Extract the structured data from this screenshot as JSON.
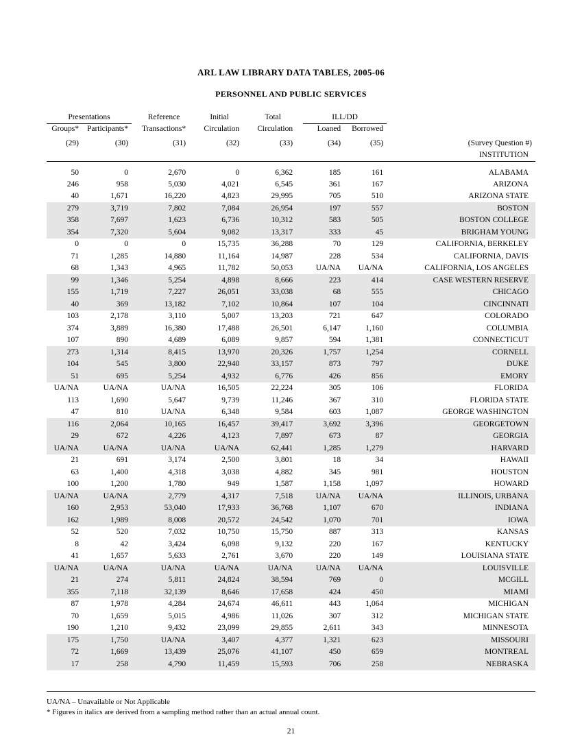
{
  "title": "ARL LAW LIBRARY DATA TABLES, 2005-06",
  "subtitle": "PERSONNEL AND PUBLIC SERVICES",
  "group_headers": {
    "presentations": "Presentations",
    "reference": "Reference",
    "initial": "Initial",
    "total": "Total",
    "illdd": "ILL/DD"
  },
  "col_labels": {
    "groups": "Groups*",
    "participants": "Participants*",
    "transactions": "Transactions*",
    "init_circ": "Circulation",
    "total_circ": "Circulation",
    "loaned": "Loaned",
    "borrowed": "Borrowed"
  },
  "qnums": {
    "c29": "(29)",
    "c30": "(30)",
    "c31": "(31)",
    "c32": "(32)",
    "c33": "(33)",
    "c34": "(34)",
    "c35": "(35)",
    "survey_label": "(Survey Question #)"
  },
  "institution_label": "INSTITUTION",
  "footnotes": {
    "uana": "UA/NA – Unavailable or Not Applicable",
    "italics": "* Figures in italics are derived from a sampling method rather than an actual annual count."
  },
  "page_number": "21",
  "rows": [
    {
      "shaded": false,
      "c29": "50",
      "c30": "0",
      "c31": "2,670",
      "c32": "0",
      "c33": "6,362",
      "c34": "185",
      "c35": "161",
      "inst": "ALABAMA"
    },
    {
      "shaded": false,
      "c29": "246",
      "c30": "958",
      "c31": "5,030",
      "c32": "4,021",
      "c33": "6,545",
      "c34": "361",
      "c35": "167",
      "inst": "ARIZONA"
    },
    {
      "shaded": false,
      "c29": "40",
      "c30": "1,671",
      "c31": "16,220",
      "c32": "4,823",
      "c33": "29,995",
      "c34": "705",
      "c35": "510",
      "inst": "ARIZONA STATE"
    },
    {
      "shaded": true,
      "c29": "279",
      "c30": "3,719",
      "c31": "7,802",
      "c32": "7,084",
      "c33": "26,954",
      "c34": "197",
      "c35": "557",
      "inst": "BOSTON"
    },
    {
      "shaded": true,
      "c29": "358",
      "c30": "7,697",
      "c31": "1,623",
      "c32": "6,736",
      "c33": "10,312",
      "c34": "583",
      "c35": "505",
      "inst": "BOSTON COLLEGE"
    },
    {
      "shaded": true,
      "c29": "354",
      "c30": "7,320",
      "c31": "5,604",
      "c32": "9,082",
      "c33": "13,317",
      "c34": "333",
      "c35": "45",
      "inst": "BRIGHAM YOUNG"
    },
    {
      "shaded": false,
      "c29": "0",
      "c30": "0",
      "c31": "0",
      "c32": "15,735",
      "c33": "36,288",
      "c34": "70",
      "c35": "129",
      "inst": "CALIFORNIA, BERKELEY"
    },
    {
      "shaded": false,
      "c29": "71",
      "c30": "1,285",
      "c31": "14,880",
      "c32": "11,164",
      "c33": "14,987",
      "c34": "228",
      "c35": "534",
      "inst": "CALIFORNIA, DAVIS"
    },
    {
      "shaded": false,
      "c29": "68",
      "c30": "1,343",
      "c31": "4,965",
      "c32": "11,782",
      "c33": "50,053",
      "c34": "UA/NA",
      "c35": "UA/NA",
      "inst": "CALIFORNIA, LOS ANGELES"
    },
    {
      "shaded": true,
      "c29": "99",
      "c30": "1,346",
      "c31": "5,254",
      "c32": "4,898",
      "c33": "8,666",
      "c34": "223",
      "c35": "414",
      "inst": "CASE WESTERN RESERVE"
    },
    {
      "shaded": true,
      "c29": "155",
      "c30": "1,719",
      "c31": "7,227",
      "c32": "26,051",
      "c33": "33,038",
      "c34": "68",
      "c35": "555",
      "inst": "CHICAGO"
    },
    {
      "shaded": true,
      "c29": "40",
      "c30": "369",
      "c31": "13,182",
      "c32": "7,102",
      "c33": "10,864",
      "c34": "107",
      "c35": "104",
      "inst": "CINCINNATI"
    },
    {
      "shaded": false,
      "c29": "103",
      "c30": "2,178",
      "c31": "3,110",
      "c32": "5,007",
      "c33": "13,203",
      "c34": "721",
      "c35": "647",
      "inst": "COLORADO"
    },
    {
      "shaded": false,
      "c29": "374",
      "c30": "3,889",
      "c31": "16,380",
      "c32": "17,488",
      "c33": "26,501",
      "c34": "6,147",
      "c35": "1,160",
      "inst": "COLUMBIA"
    },
    {
      "shaded": false,
      "c29": "107",
      "c30": "890",
      "c31": "4,689",
      "c32": "6,089",
      "c33": "9,857",
      "c34": "594",
      "c35": "1,381",
      "inst": "CONNECTICUT"
    },
    {
      "shaded": true,
      "c29": "273",
      "c30": "1,314",
      "c31": "8,415",
      "c32": "13,970",
      "c33": "20,326",
      "c34": "1,757",
      "c35": "1,254",
      "inst": "CORNELL"
    },
    {
      "shaded": true,
      "c29": "104",
      "c30": "545",
      "c31": "3,800",
      "c32": "22,940",
      "c33": "33,157",
      "c34": "873",
      "c35": "797",
      "inst": "DUKE"
    },
    {
      "shaded": true,
      "c29": "51",
      "c30": "695",
      "c31": "5,254",
      "c32": "4,932",
      "c33": "6,776",
      "c34": "426",
      "c35": "856",
      "inst": "EMORY"
    },
    {
      "shaded": false,
      "c29": "UA/NA",
      "c30": "UA/NA",
      "c31": "UA/NA",
      "c32": "16,505",
      "c33": "22,224",
      "c34": "305",
      "c35": "106",
      "inst": "FLORIDA"
    },
    {
      "shaded": false,
      "c29": "113",
      "c30": "1,690",
      "c31": "5,647",
      "c32": "9,739",
      "c33": "11,246",
      "c34": "367",
      "c35": "310",
      "inst": "FLORIDA STATE"
    },
    {
      "shaded": false,
      "c29": "47",
      "c30": "810",
      "c31": "UA/NA",
      "c32": "6,348",
      "c33": "9,584",
      "c34": "603",
      "c35": "1,087",
      "inst": "GEORGE WASHINGTON"
    },
    {
      "shaded": true,
      "c29": "116",
      "c30": "2,064",
      "c31": "10,165",
      "c32": "16,457",
      "c33": "39,417",
      "c34": "3,692",
      "c35": "3,396",
      "inst": "GEORGETOWN"
    },
    {
      "shaded": true,
      "c29": "29",
      "c30": "672",
      "c31": "4,226",
      "c32": "4,123",
      "c33": "7,897",
      "c34": "673",
      "c35": "87",
      "inst": "GEORGIA"
    },
    {
      "shaded": true,
      "c29": "UA/NA",
      "c30": "UA/NA",
      "c31": "UA/NA",
      "c32": "UA/NA",
      "c33": "62,441",
      "c34": "1,285",
      "c35": "1,279",
      "inst": "HARVARD"
    },
    {
      "shaded": false,
      "c29": "21",
      "c30": "691",
      "c31": "3,174",
      "c32": "2,500",
      "c33": "3,801",
      "c34": "18",
      "c35": "34",
      "inst": "HAWAII"
    },
    {
      "shaded": false,
      "c29": "63",
      "c30": "1,400",
      "c31": "4,318",
      "c32": "3,038",
      "c33": "4,882",
      "c34": "345",
      "c35": "981",
      "inst": "HOUSTON"
    },
    {
      "shaded": false,
      "c29": "100",
      "c30": "1,200",
      "c31": "1,780",
      "c32": "949",
      "c33": "1,587",
      "c34": "1,158",
      "c35": "1,097",
      "inst": "HOWARD"
    },
    {
      "shaded": true,
      "c29": "UA/NA",
      "c30": "UA/NA",
      "c31": "2,779",
      "c32": "4,317",
      "c33": "7,518",
      "c34": "UA/NA",
      "c35": "UA/NA",
      "inst": "ILLINOIS, URBANA"
    },
    {
      "shaded": true,
      "c29": "160",
      "c30": "2,953",
      "c31": "53,040",
      "c32": "17,933",
      "c33": "36,768",
      "c34": "1,107",
      "c35": "670",
      "inst": "INDIANA"
    },
    {
      "shaded": true,
      "c29": "162",
      "c30": "1,989",
      "c31": "8,008",
      "c32": "20,572",
      "c33": "24,542",
      "c34": "1,070",
      "c35": "701",
      "inst": "IOWA"
    },
    {
      "shaded": false,
      "c29": "52",
      "c30": "520",
      "c31": "7,032",
      "c32": "10,750",
      "c33": "15,750",
      "c34": "887",
      "c35": "313",
      "inst": "KANSAS"
    },
    {
      "shaded": false,
      "c29": "8",
      "c30": "42",
      "c31": "3,424",
      "c32": "6,098",
      "c33": "9,132",
      "c34": "220",
      "c35": "167",
      "inst": "KENTUCKY"
    },
    {
      "shaded": false,
      "c29": "41",
      "c30": "1,657",
      "c31": "5,633",
      "c32": "2,761",
      "c33": "3,670",
      "c34": "220",
      "c35": "149",
      "inst": "LOUISIANA STATE"
    },
    {
      "shaded": true,
      "c29": "UA/NA",
      "c30": "UA/NA",
      "c31": "UA/NA",
      "c32": "UA/NA",
      "c33": "UA/NA",
      "c34": "UA/NA",
      "c35": "UA/NA",
      "inst": "LOUISVILLE"
    },
    {
      "shaded": true,
      "c29": "21",
      "c30": "274",
      "c31": "5,811",
      "c32": "24,824",
      "c33": "38,594",
      "c34": "769",
      "c35": "0",
      "inst": "MCGILL"
    },
    {
      "shaded": true,
      "c29": "355",
      "c30": "7,118",
      "c31": "32,139",
      "c32": "8,646",
      "c33": "17,658",
      "c34": "424",
      "c35": "450",
      "inst": "MIAMI"
    },
    {
      "shaded": false,
      "c29": "87",
      "c30": "1,978",
      "c31": "4,284",
      "c32": "24,674",
      "c33": "46,611",
      "c34": "443",
      "c35": "1,064",
      "inst": "MICHIGAN"
    },
    {
      "shaded": false,
      "c29": "70",
      "c30": "1,659",
      "c31": "5,015",
      "c32": "4,986",
      "c33": "11,026",
      "c34": "307",
      "c35": "312",
      "inst": "MICHIGAN STATE"
    },
    {
      "shaded": false,
      "c29": "190",
      "c30": "1,210",
      "c31": "9,432",
      "c32": "23,099",
      "c33": "29,855",
      "c34": "2,611",
      "c35": "343",
      "inst": "MINNESOTA"
    },
    {
      "shaded": true,
      "c29": "175",
      "c30": "1,750",
      "c31": "UA/NA",
      "c32": "3,407",
      "c33": "4,377",
      "c34": "1,321",
      "c35": "623",
      "inst": "MISSOURI"
    },
    {
      "shaded": true,
      "c29": "72",
      "c30": "1,669",
      "c31": "13,439",
      "c32": "25,076",
      "c33": "41,107",
      "c34": "450",
      "c35": "659",
      "inst": "MONTREAL"
    },
    {
      "shaded": true,
      "c29": "17",
      "c30": "258",
      "c31": "4,790",
      "c32": "11,459",
      "c33": "15,593",
      "c34": "706",
      "c35": "258",
      "inst": "NEBRASKA"
    }
  ]
}
